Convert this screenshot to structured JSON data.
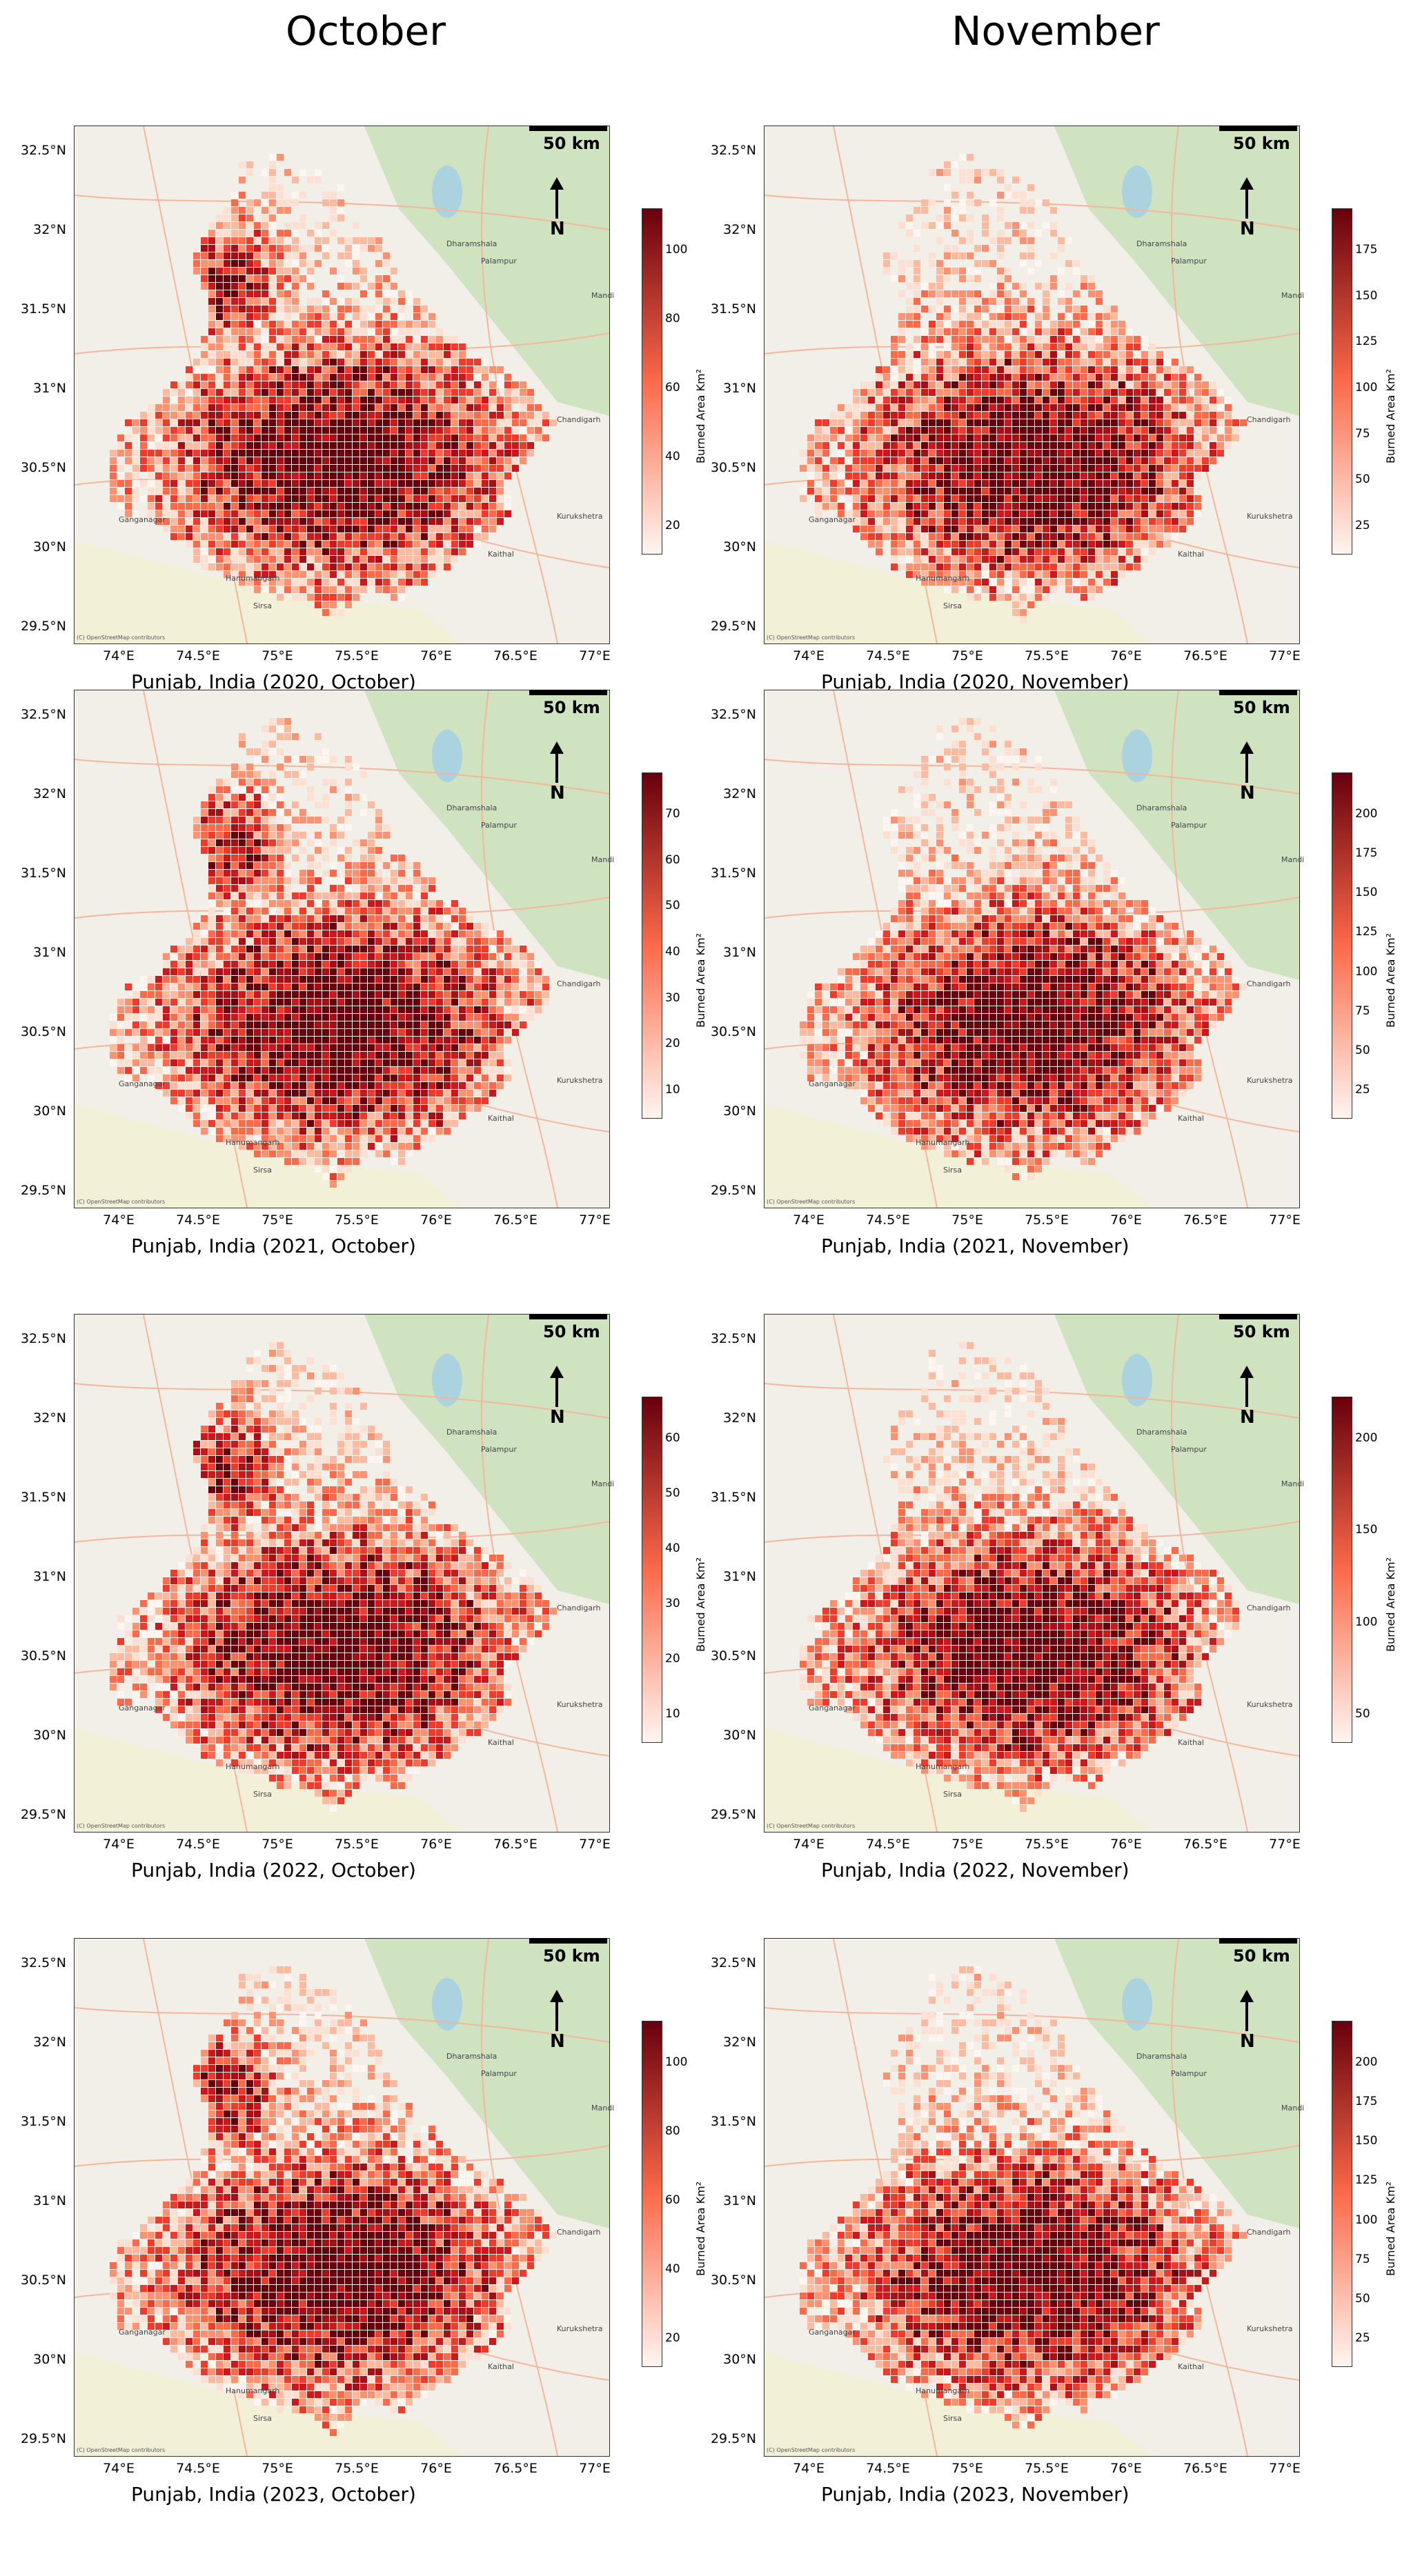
{
  "column_titles": [
    "October",
    "November"
  ],
  "scale_label": "50 km",
  "north_label": "N",
  "colorbar_label": "Burned Area Km²",
  "attribution": "(C) OpenStreetMap contributors",
  "y_ticks": [
    "32.5°N",
    "32°N",
    "31.5°N",
    "31°N",
    "30.5°N",
    "30°N",
    "29.5°N"
  ],
  "x_ticks": [
    "74°E",
    "74.5°E",
    "75°E",
    "75.5°E",
    "76°E",
    "76.5°E",
    "77°E"
  ],
  "places": [
    "Dharamshala",
    "Palampur",
    "Mandi",
    "Chandigarh",
    "Kurukshetra",
    "Kaithal",
    "Ganganagar",
    "Hanumangarh",
    "Sirsa"
  ],
  "colors": {
    "low": "#fff5f0",
    "mid": "#fb6a4a",
    "high": "#67000d"
  },
  "panels": [
    {
      "caption": "Punjab, India (2020, October)",
      "cbar_ticks": [
        "100",
        "80",
        "60",
        "40",
        "20"
      ]
    },
    {
      "caption": "Punjab, India (2020, November)",
      "cbar_ticks": [
        "175",
        "150",
        "125",
        "100",
        "75",
        "50",
        "25"
      ]
    },
    {
      "caption": "Punjab, India (2021, October)",
      "cbar_ticks": [
        "70",
        "60",
        "50",
        "40",
        "30",
        "20",
        "10"
      ]
    },
    {
      "caption": "Punjab, India (2021, November)",
      "cbar_ticks": [
        "200",
        "175",
        "150",
        "125",
        "100",
        "75",
        "50",
        "25"
      ]
    },
    {
      "caption": "Punjab, India (2022, October)",
      "cbar_ticks": [
        "60",
        "50",
        "40",
        "30",
        "20",
        "10"
      ]
    },
    {
      "caption": "Punjab, India (2022, November)",
      "cbar_ticks": [
        "200",
        "150",
        "100",
        "50"
      ]
    },
    {
      "caption": "Punjab, India (2023, October)",
      "cbar_ticks": [
        "100",
        "80",
        "60",
        "40",
        "20"
      ]
    },
    {
      "caption": "Punjab, India (2023, November)",
      "cbar_ticks": [
        "200",
        "175",
        "150",
        "125",
        "100",
        "75",
        "50",
        "25"
      ]
    }
  ]
}
